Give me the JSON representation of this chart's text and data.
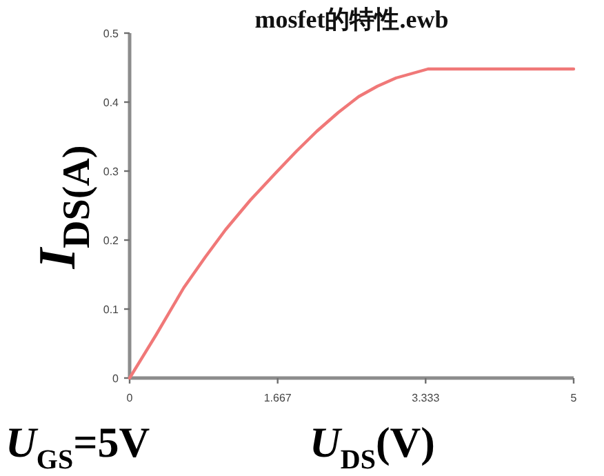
{
  "chart_data": {
    "type": "line",
    "title": "mosfet的特性.ewb",
    "xlabel": "U$_{DS}$(V)",
    "ylabel": "I$_{DS(A)}$",
    "annotations": [
      "U$_{GS}$=5V"
    ],
    "x": [
      0,
      0.3,
      0.61,
      0.85,
      1.08,
      1.36,
      1.65,
      1.88,
      2.11,
      2.35,
      2.58,
      2.79,
      3,
      3.36,
      5
    ],
    "series": [
      {
        "color": "#f07878",
        "values": [
          0,
          0.063,
          0.131,
          0.175,
          0.215,
          0.258,
          0.298,
          0.329,
          0.358,
          0.385,
          0.408,
          0.423,
          0.435,
          0.448,
          0.448
        ]
      }
    ],
    "xlim": [
      0,
      5
    ],
    "ylim": [
      0,
      0.5
    ],
    "xticks": [
      0,
      1.667,
      3.333,
      5
    ],
    "yticks": [
      0,
      0.1,
      0.2,
      0.3,
      0.4,
      0.5
    ]
  }
}
